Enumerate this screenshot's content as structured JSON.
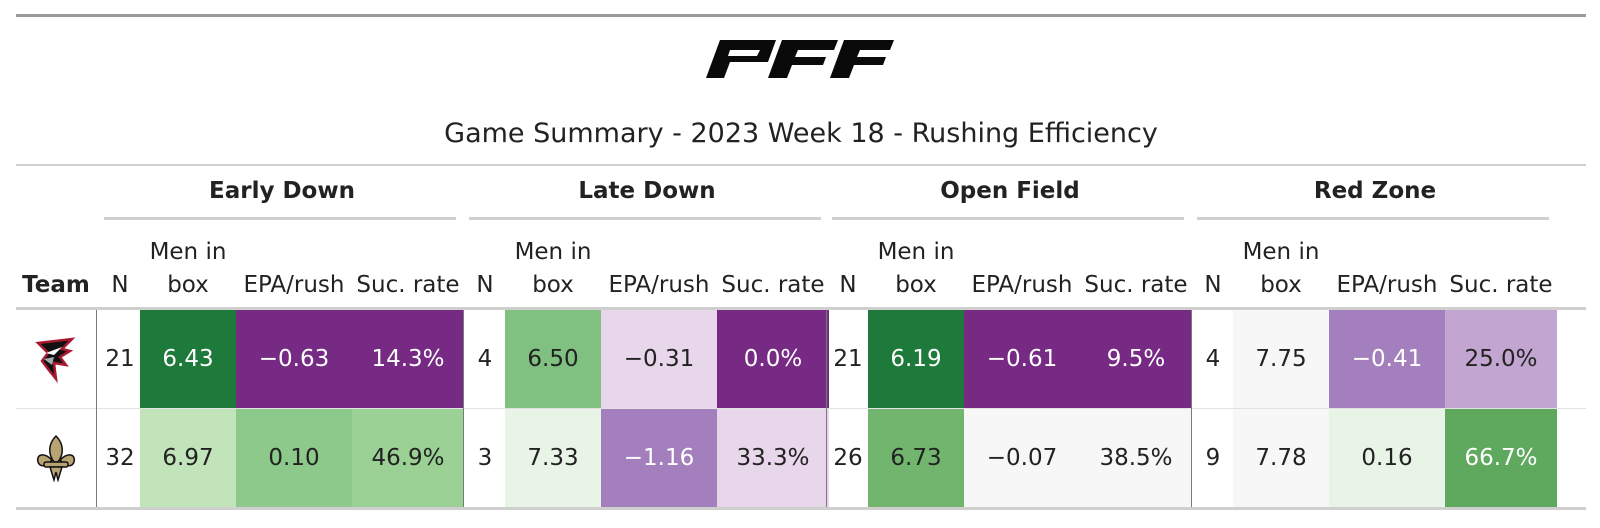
{
  "title": "Game Summary - 2023 Week 18 - Rushing Efficiency",
  "brand": {
    "logo_text": "PFF",
    "logo_icon": "pff-logo"
  },
  "groups": [
    {
      "label": "Early Down"
    },
    {
      "label": "Late Down"
    },
    {
      "label": "Open Field"
    },
    {
      "label": "Red Zone"
    }
  ],
  "columns": {
    "team": "Team",
    "n": "N",
    "box": "Men in\nbox",
    "epa": "EPA/rush",
    "suc": "Suc. rate"
  },
  "rows": [
    {
      "team_icon": "falcons-logo-icon",
      "groups": [
        {
          "n": "21",
          "box": "6.43",
          "epa": "−0.63",
          "suc": "14.3%",
          "box_bg": "#1e7a3a",
          "epa_bg": "#762a83",
          "suc_bg": "#762a83"
        },
        {
          "n": "4",
          "box": "6.50",
          "epa": "−0.31",
          "suc": "0.0%",
          "box_bg": "#80c080",
          "epa_bg": "#e8d6ea",
          "suc_bg": "#762a83"
        },
        {
          "n": "21",
          "box": "6.19",
          "epa": "−0.61",
          "suc": "9.5%",
          "box_bg": "#1e7a3a",
          "epa_bg": "#762a83",
          "suc_bg": "#762a83"
        },
        {
          "n": "4",
          "box": "7.75",
          "epa": "−0.41",
          "suc": "25.0%",
          "box_bg": "#f7f7f7",
          "epa_bg": "#a47fbd",
          "suc_bg": "#c3a5d1"
        }
      ]
    },
    {
      "team_icon": "saints-fleur-de-lis-icon",
      "groups": [
        {
          "n": "32",
          "box": "6.97",
          "epa": "0.10",
          "suc": "46.9%",
          "box_bg": "#c2e4bb",
          "epa_bg": "#8cc98a",
          "suc_bg": "#9bd194"
        },
        {
          "n": "3",
          "box": "7.33",
          "epa": "−1.16",
          "suc": "33.3%",
          "box_bg": "#e8f4e5",
          "epa_bg": "#a47fbd",
          "suc_bg": "#e8d6ea"
        },
        {
          "n": "26",
          "box": "6.73",
          "epa": "−0.07",
          "suc": "38.5%",
          "box_bg": "#72b56f",
          "epa_bg": "#f7f7f7",
          "suc_bg": "#f7f7f7"
        },
        {
          "n": "9",
          "box": "7.78",
          "epa": "0.16",
          "suc": "66.7%",
          "box_bg": "#f7f7f7",
          "epa_bg": "#e8f4e5",
          "suc_bg": "#5ea95d"
        }
      ]
    }
  ]
}
